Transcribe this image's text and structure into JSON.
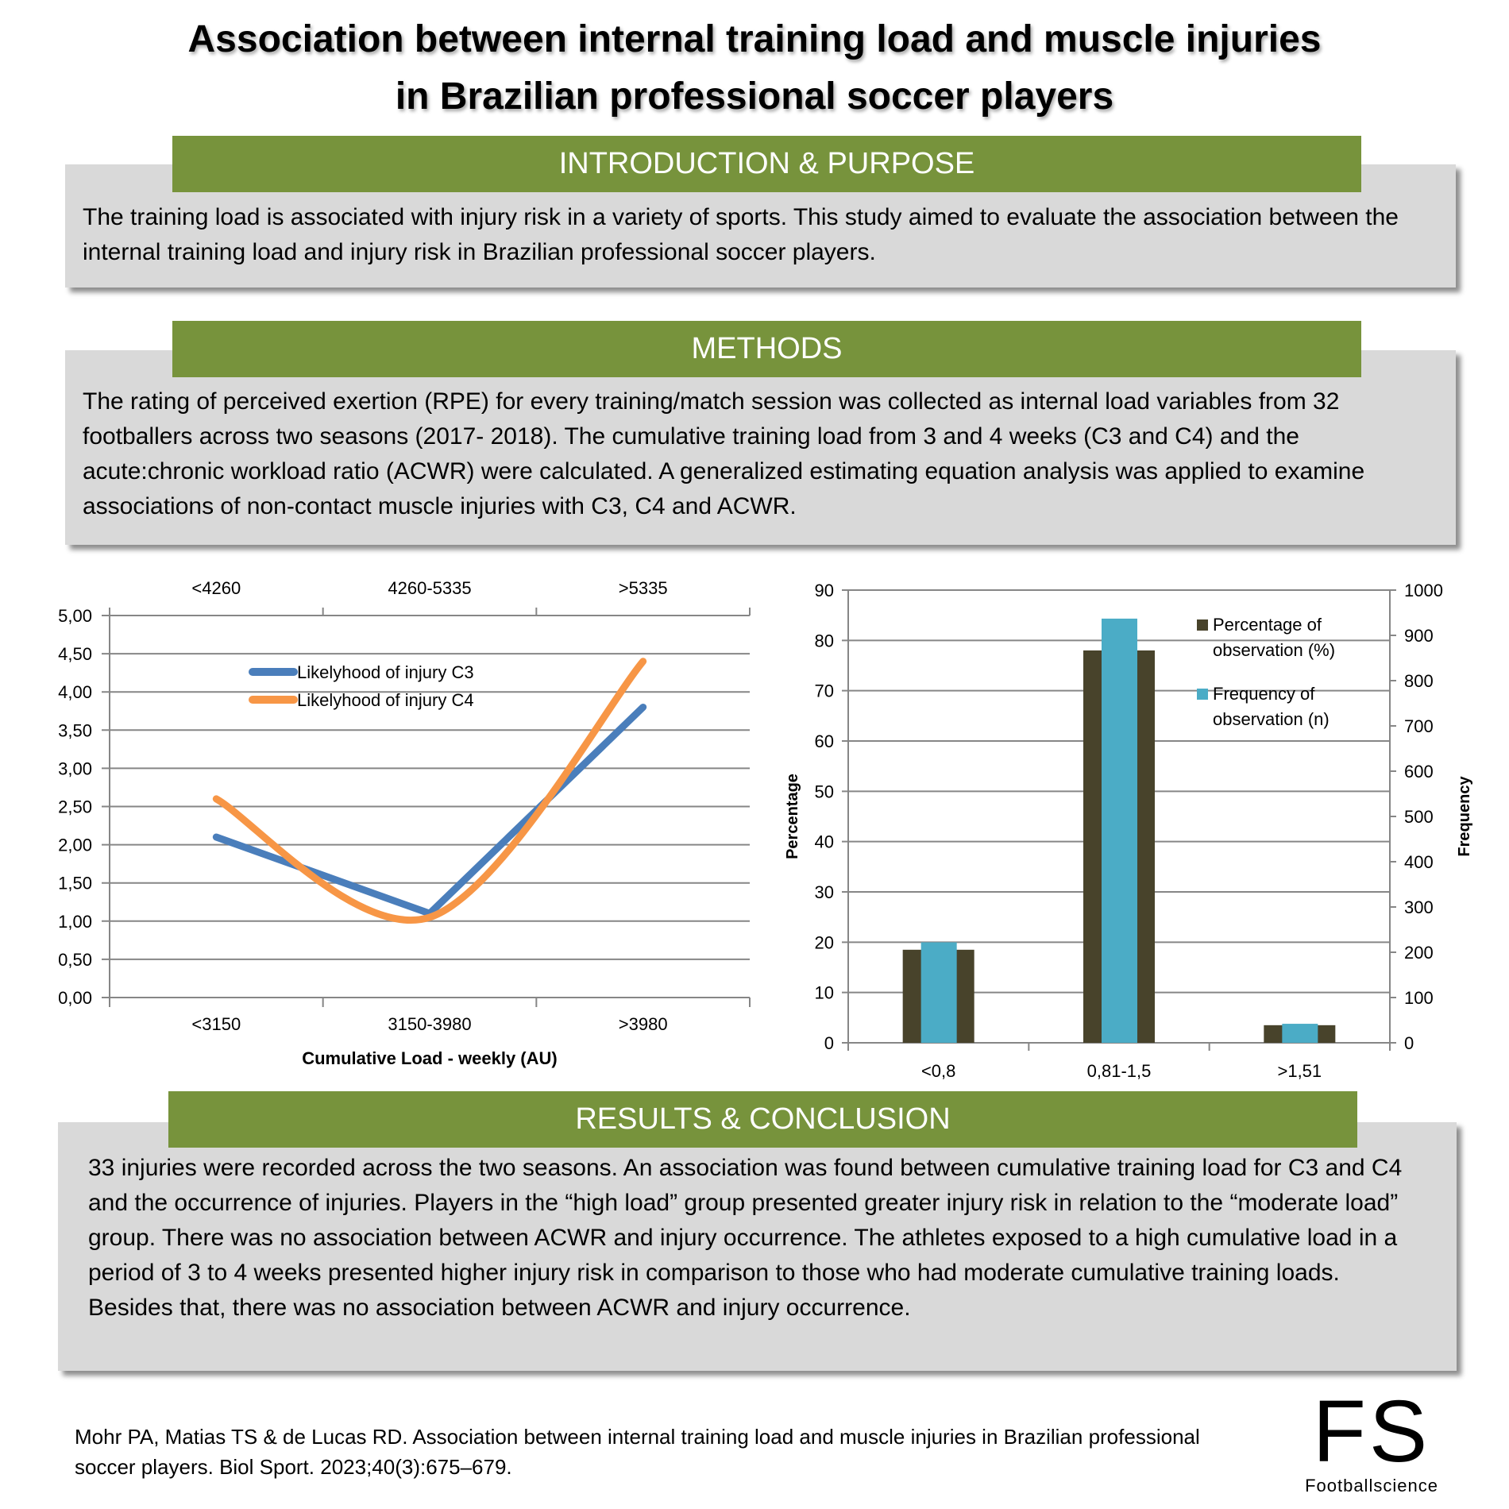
{
  "title": {
    "line1": "Association between internal training load and muscle injuries",
    "line2": "in Brazilian professional soccer players"
  },
  "intro": {
    "heading": "INTRODUCTION & PURPOSE",
    "text": "The training load is associated with injury risk in a variety of sports. This study aimed to evaluate the association between the internal training load and injury risk in Brazilian professional soccer players."
  },
  "methods": {
    "heading": "METHODS",
    "text": "The rating of perceived exertion (RPE) for every training/match session was collected as internal load variables from 32 footballers across two seasons (2017- 2018). The cumulative training load from 3 and 4 weeks (C3 and C4) and the acute:chronic workload ratio (ACWR) were calculated. A generalized estimating equation analysis was applied to examine associations of non-contact muscle injuries with C3, C4 and ACWR."
  },
  "results": {
    "heading": "RESULTS & CONCLUSION",
    "text": "33 injuries were recorded across the two seasons. An association was found between cumulative training load for C3 and C4 and the occurrence of injuries. Players in the “high load” group presented greater injury risk in relation to the “moderate load” group. There was no association between ACWR and injury occurrence. The athletes exposed to a high cumulative load in a period of 3 to 4 weeks presented higher injury risk in comparison to those who had moderate cumulative training loads. Besides that, there was no association between ACWR and injury occurrence."
  },
  "citation": "Mohr PA, Matias TS & de Lucas RD. Association between internal training load and muscle injuries in Brazilian professional soccer players. Biol Sport. 2023;40(3):675–679.",
  "logo": {
    "letters": "FS",
    "name": "Footballscience"
  },
  "colors": {
    "header_green": "#77933c",
    "box_gray": "#d9d9d9",
    "c3": "#4a7ebb",
    "c4": "#f79646",
    "pct_bar": "#48432b",
    "freq_bar": "#4bacc6"
  },
  "chart_data": [
    {
      "type": "line",
      "categories": [
        "<3150",
        "3150-3980",
        ">3980"
      ],
      "top_categories": [
        "<4260",
        "4260-5335",
        ">5335"
      ],
      "xlabel": "Cumulative Load  - weekly (AU)",
      "ylabel": "",
      "ylim": [
        0,
        5
      ],
      "yticks": [
        "0,00",
        "0,50",
        "1,00",
        "1,50",
        "2,00",
        "2,50",
        "3,00",
        "3,50",
        "4,00",
        "4,50",
        "5,00"
      ],
      "grid": true,
      "legend": "top-center",
      "series": [
        {
          "name": "Likelyhood of injury C3",
          "values": [
            2.1,
            1.1,
            3.8
          ]
        },
        {
          "name": "Likelyhood of injury C4",
          "values": [
            2.6,
            1.05,
            4.4
          ]
        }
      ]
    },
    {
      "type": "bar",
      "categories": [
        "<0,8",
        "0,81-1,5",
        ">1,51"
      ],
      "ylabel": "Percentage",
      "y2label": "Frequency",
      "ylim": [
        0,
        90
      ],
      "y2lim": [
        0,
        1000
      ],
      "yticks": [
        "0",
        "10",
        "20",
        "30",
        "40",
        "50",
        "60",
        "70",
        "80",
        "90"
      ],
      "y2ticks": [
        "0",
        "100",
        "200",
        "300",
        "400",
        "500",
        "600",
        "700",
        "800",
        "900",
        "1000"
      ],
      "grid": true,
      "legend": "top-right",
      "series": [
        {
          "name": "Percentage of observation (%)",
          "legend_lines": [
            "Percentage of",
            "observation (%)"
          ],
          "axis": "left",
          "values": [
            18.5,
            78,
            3.5
          ]
        },
        {
          "name": "Frequency of observation (n)",
          "legend_lines": [
            "Frequency of",
            "observation (n)"
          ],
          "axis": "right",
          "values": [
            222,
            937,
            42
          ]
        }
      ]
    }
  ]
}
